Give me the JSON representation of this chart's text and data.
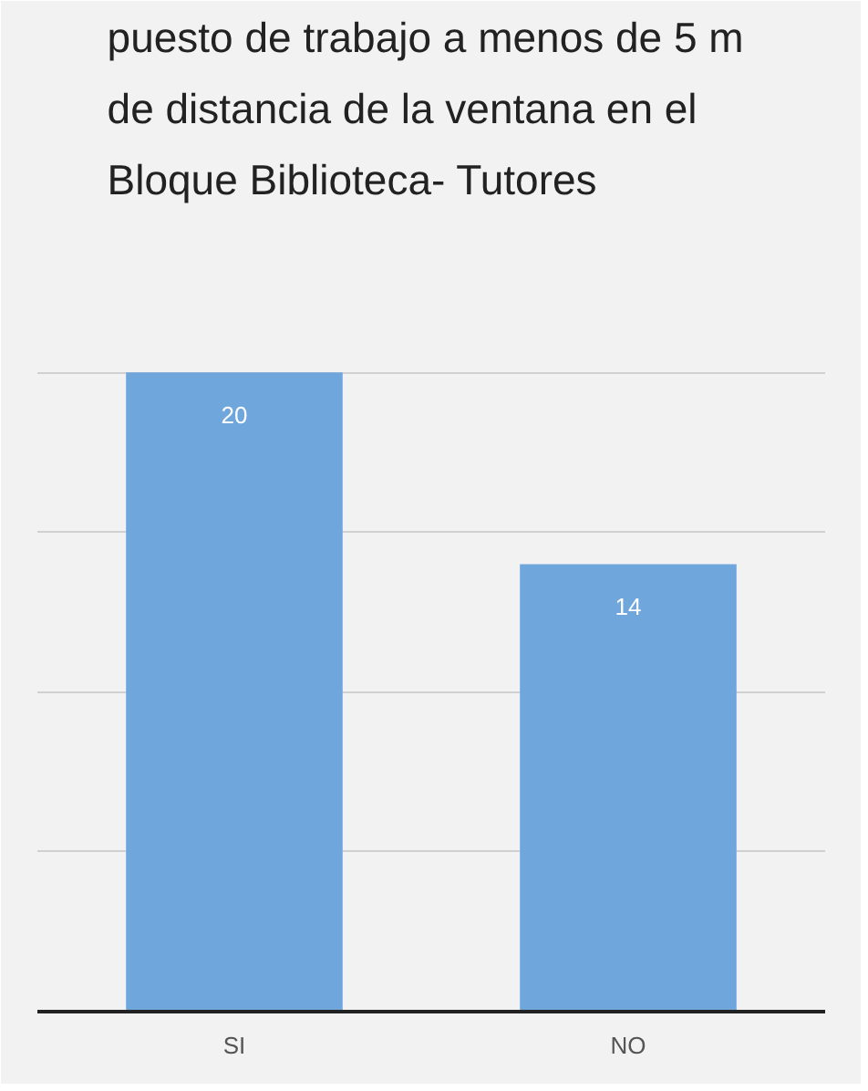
{
  "chart_data": {
    "type": "bar",
    "title": "puesto de trabajo a  menos de 5 m de distancia de la ventana en el Bloque  Biblioteca- Tutores",
    "categories": [
      "SI",
      "NO"
    ],
    "values": [
      20,
      14
    ],
    "color": "#6fa6dc",
    "ylim": [
      0,
      25
    ],
    "yticks": [
      {
        "value": 0,
        "label": null
      },
      {
        "value": 5,
        "label": null
      },
      {
        "value": 10,
        "label": null
      },
      {
        "value": 15,
        "label": null
      },
      {
        "value": 20,
        "label": null
      },
      {
        "value": 25,
        "label": null
      }
    ],
    "grid": "y",
    "data_labels": true,
    "tick_labels": "x"
  }
}
